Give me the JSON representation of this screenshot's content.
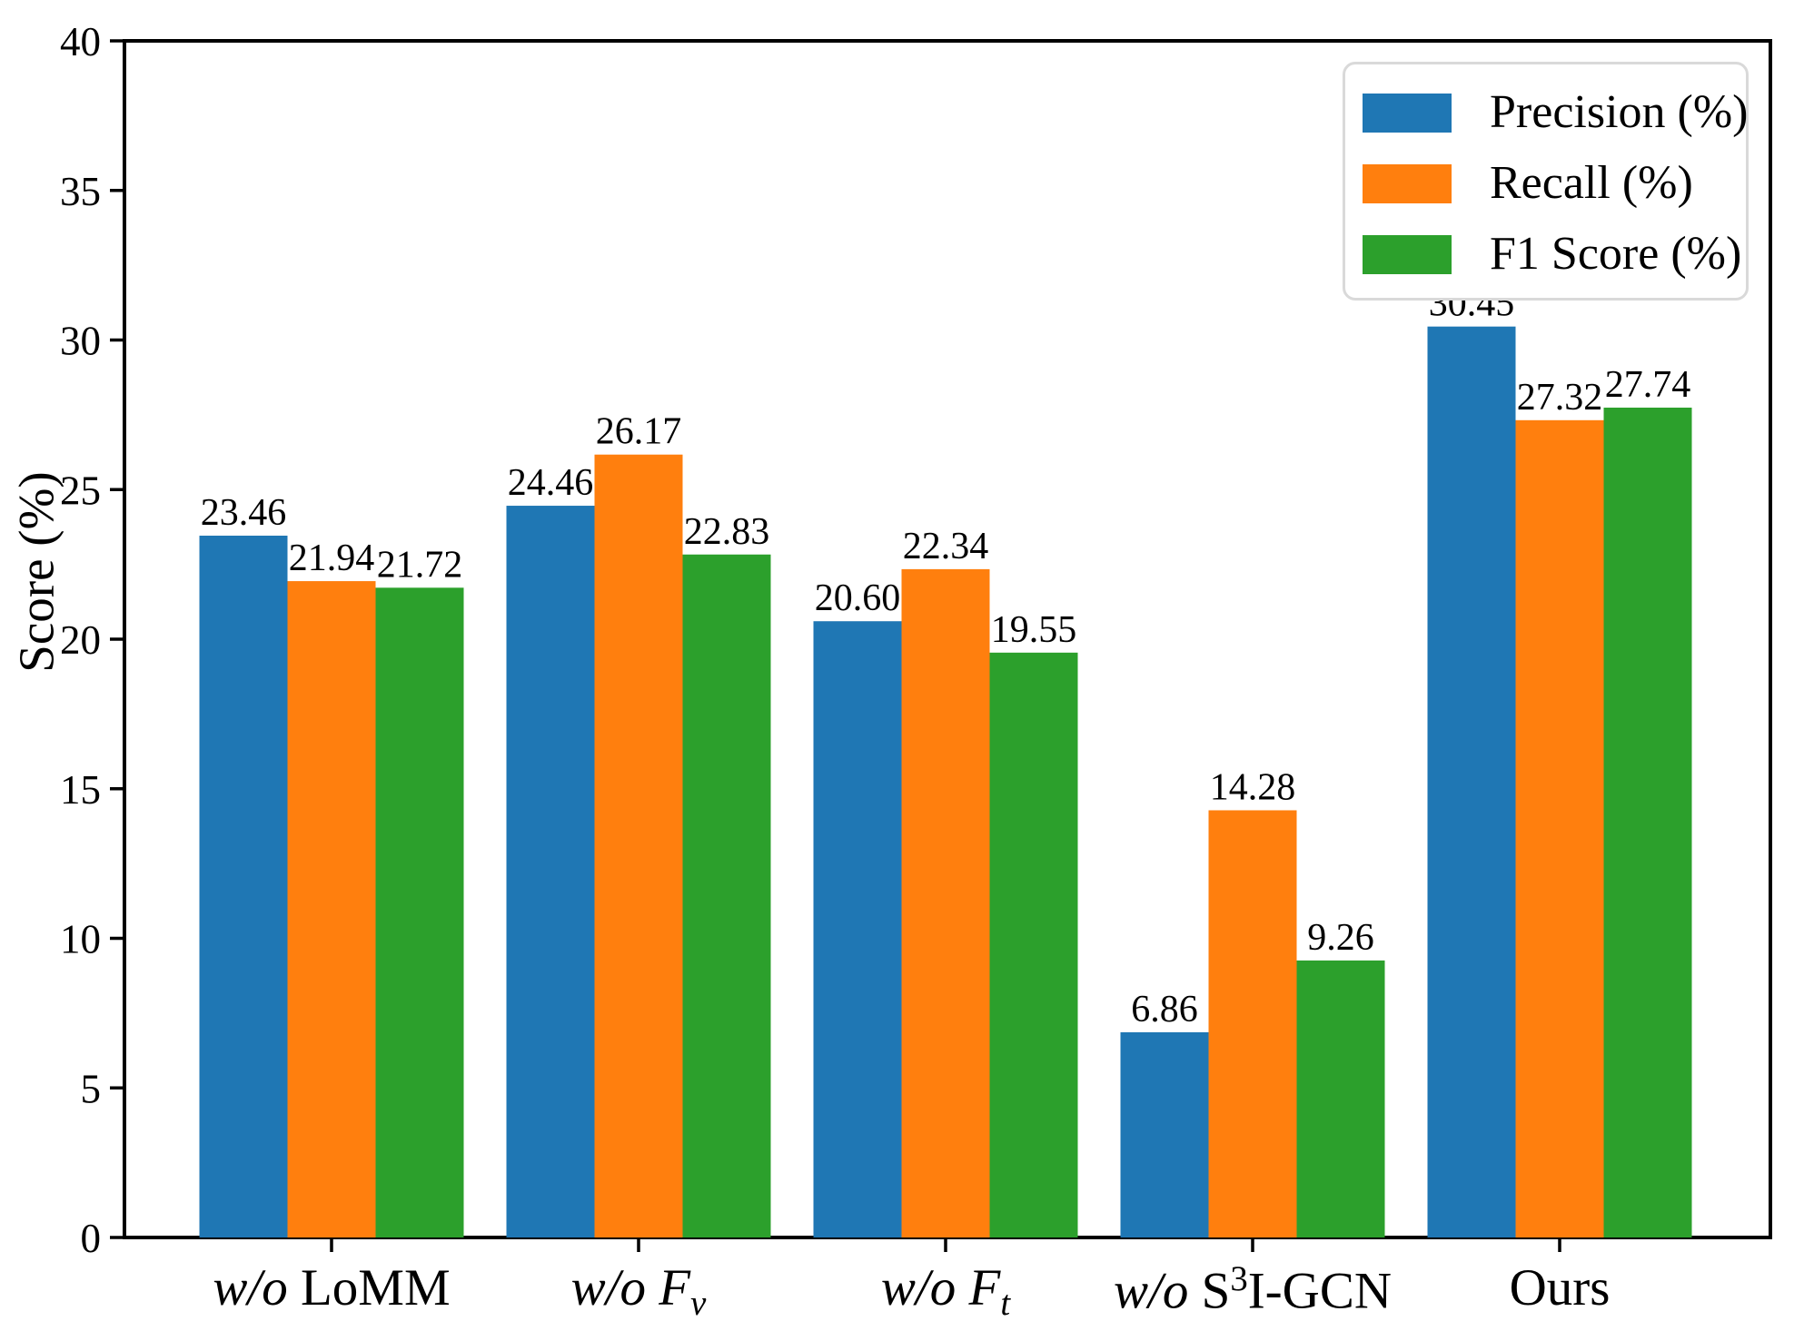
{
  "figure": {
    "ylabel": "Score (%)",
    "background": "#ffffff",
    "axis_color": "#000000",
    "text_color": "#000000"
  },
  "legend": {
    "position": "upper-right",
    "entries": [
      {
        "label": "Precision (%)",
        "color": "#1f77b4"
      },
      {
        "label": "Recall (%)",
        "color": "#ff7f0e"
      },
      {
        "label": "F1 Score (%)",
        "color": "#2ca02c"
      }
    ]
  },
  "chart_data": {
    "type": "bar",
    "title": "",
    "xlabel": "",
    "ylabel": "Score (%)",
    "ylim": [
      0,
      40
    ],
    "y_ticks": [
      0,
      5,
      10,
      15,
      20,
      25,
      30,
      35,
      40
    ],
    "grid": false,
    "legend_position": "upper right",
    "value_labels_shown": true,
    "value_label_decimals": 2,
    "categories": [
      "w/o LoMM",
      "w/o F_v",
      "w/o F_t",
      "w/o S^3I-GCN",
      "Ours"
    ],
    "categories_rich": [
      [
        {
          "t": "w/o ",
          "i": true
        },
        {
          "t": "LoMM"
        }
      ],
      [
        {
          "t": "w/o F",
          "i": true
        },
        {
          "t": "v",
          "pos": "sub"
        }
      ],
      [
        {
          "t": "w/o F",
          "i": true
        },
        {
          "t": "t",
          "pos": "sub"
        }
      ],
      [
        {
          "t": "w/o ",
          "i": true
        },
        {
          "t": "S"
        },
        {
          "t": "3",
          "pos": "sup"
        },
        {
          "t": "I-GCN"
        }
      ],
      [
        {
          "t": "Ours"
        }
      ]
    ],
    "series": [
      {
        "name": "Precision (%)",
        "color": "#1f77b4",
        "values": [
          23.46,
          24.46,
          20.6,
          6.86,
          30.45
        ]
      },
      {
        "name": "Recall (%)",
        "color": "#ff7f0e",
        "values": [
          21.94,
          26.17,
          22.34,
          14.28,
          27.32
        ]
      },
      {
        "name": "F1 Score (%)",
        "color": "#2ca02c",
        "values": [
          21.72,
          22.83,
          19.55,
          9.26,
          27.74
        ]
      }
    ]
  }
}
